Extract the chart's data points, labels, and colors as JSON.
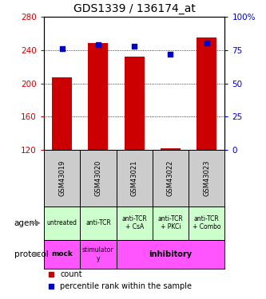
{
  "title": "GDS1339 / 136174_at",
  "samples": [
    "GSM43019",
    "GSM43020",
    "GSM43021",
    "GSM43022",
    "GSM43023"
  ],
  "bar_values": [
    207,
    248,
    232,
    122,
    255
  ],
  "bar_bottom": 120,
  "percentile_values": [
    76,
    79,
    78,
    72,
    80
  ],
  "bar_color": "#cc0000",
  "dot_color": "#0000cc",
  "ylim_left": [
    120,
    280
  ],
  "ylim_right": [
    0,
    100
  ],
  "yticks_left": [
    120,
    160,
    200,
    240,
    280
  ],
  "yticks_right": [
    0,
    25,
    50,
    75,
    100
  ],
  "ytick_labels_right": [
    "0",
    "25",
    "50",
    "75",
    "100%"
  ],
  "grid_values": [
    160,
    200,
    240
  ],
  "agent_labels": [
    "untreated",
    "anti-TCR",
    "anti-TCR\n+ CsA",
    "anti-TCR\n+ PKCi",
    "anti-TCR\n+ Combo"
  ],
  "agent_color": "#ccffcc",
  "protocol_color": "#ff55ff",
  "sample_bg_color": "#cccccc",
  "legend_count_color": "#cc0000",
  "legend_pct_color": "#0000cc",
  "bar_width": 0.55,
  "title_fontsize": 10
}
